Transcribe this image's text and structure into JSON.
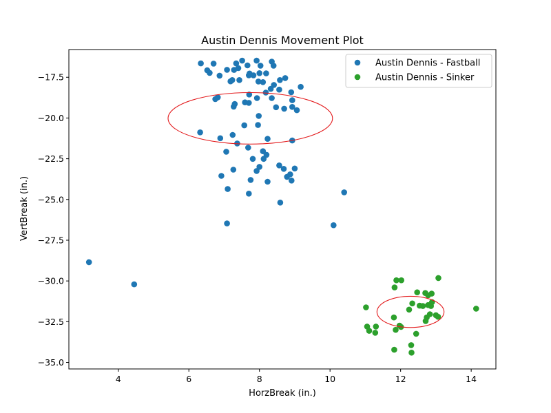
{
  "chart_data": {
    "type": "scatter",
    "title": "Austin Dennis Movement Plot",
    "xlabel": "HorzBreak (in.)",
    "ylabel": "VertBreak (in.)",
    "xlim": [
      2.6,
      14.7
    ],
    "ylim": [
      -35.4,
      -15.8
    ],
    "xticks": [
      4,
      6,
      8,
      10,
      12,
      14
    ],
    "yticks": [
      -17.5,
      -20.0,
      -22.5,
      -25.0,
      -27.5,
      -30.0,
      -32.5,
      -35.0
    ],
    "xtick_labels": [
      "4",
      "6",
      "8",
      "10",
      "12",
      "14"
    ],
    "ytick_labels": [
      "−17.5",
      "−20.0",
      "−22.5",
      "−25.0",
      "−27.5",
      "−30.0",
      "−32.5",
      "−35.0"
    ],
    "grid": false,
    "legend_position": "top-right",
    "series": [
      {
        "name": "Austin Dennis - Fastball",
        "color": "#1f77b4",
        "points": [
          [
            6.34,
            -16.65
          ],
          [
            6.52,
            -17.07
          ],
          [
            6.59,
            -17.23
          ],
          [
            6.7,
            -16.66
          ],
          [
            6.87,
            -17.4
          ],
          [
            7.08,
            -17.04
          ],
          [
            7.18,
            -17.75
          ],
          [
            7.23,
            -17.67
          ],
          [
            7.28,
            -17.05
          ],
          [
            7.34,
            -16.65
          ],
          [
            7.4,
            -16.94
          ],
          [
            7.43,
            -17.67
          ],
          [
            7.51,
            -16.48
          ],
          [
            7.66,
            -16.77
          ],
          [
            7.7,
            -17.38
          ],
          [
            7.72,
            -17.27
          ],
          [
            7.83,
            -17.38
          ],
          [
            7.92,
            -16.48
          ],
          [
            7.97,
            -17.76
          ],
          [
            8.0,
            -17.25
          ],
          [
            8.03,
            -16.79
          ],
          [
            8.1,
            -17.8
          ],
          [
            8.19,
            -17.26
          ],
          [
            8.35,
            -16.54
          ],
          [
            8.4,
            -16.79
          ],
          [
            8.58,
            -17.67
          ],
          [
            8.73,
            -17.55
          ],
          [
            6.75,
            -18.84
          ],
          [
            6.82,
            -18.73
          ],
          [
            7.27,
            -19.3
          ],
          [
            7.3,
            -19.14
          ],
          [
            7.59,
            -19.04
          ],
          [
            7.7,
            -19.07
          ],
          [
            7.71,
            -18.56
          ],
          [
            7.93,
            -18.78
          ],
          [
            8.18,
            -18.44
          ],
          [
            8.32,
            -18.21
          ],
          [
            8.35,
            -18.78
          ],
          [
            8.41,
            -17.97
          ],
          [
            8.47,
            -19.34
          ],
          [
            8.56,
            -18.26
          ],
          [
            8.7,
            -19.43
          ],
          [
            8.93,
            -19.32
          ],
          [
            8.93,
            -18.91
          ],
          [
            9.06,
            -19.52
          ],
          [
            9.17,
            -18.09
          ],
          [
            8.9,
            -18.42
          ],
          [
            7.98,
            -19.87
          ],
          [
            6.32,
            -20.88
          ],
          [
            6.89,
            -21.24
          ],
          [
            7.06,
            -22.07
          ],
          [
            7.24,
            -21.04
          ],
          [
            7.37,
            -21.56
          ],
          [
            7.57,
            -20.45
          ],
          [
            7.68,
            -21.82
          ],
          [
            7.96,
            -20.43
          ],
          [
            8.1,
            -22.04
          ],
          [
            8.23,
            -21.28
          ],
          [
            8.2,
            -22.26
          ],
          [
            8.93,
            -21.38
          ],
          [
            6.92,
            -23.55
          ],
          [
            7.26,
            -23.17
          ],
          [
            7.81,
            -22.51
          ],
          [
            7.92,
            -23.25
          ],
          [
            8.0,
            -23.0
          ],
          [
            8.12,
            -22.51
          ],
          [
            7.75,
            -23.8
          ],
          [
            8.23,
            -23.91
          ],
          [
            8.56,
            -22.91
          ],
          [
            8.69,
            -23.12
          ],
          [
            8.78,
            -23.61
          ],
          [
            8.91,
            -23.84
          ],
          [
            8.87,
            -23.46
          ],
          [
            9.0,
            -23.1
          ],
          [
            7.1,
            -24.36
          ],
          [
            7.7,
            -24.64
          ],
          [
            8.59,
            -25.19
          ],
          [
            10.4,
            -24.56
          ],
          [
            7.08,
            -26.47
          ],
          [
            10.1,
            -26.58
          ],
          [
            3.17,
            -28.85
          ],
          [
            4.45,
            -30.21
          ]
        ]
      },
      {
        "name": "Austin Dennis - Sinker",
        "color": "#2ca02c",
        "points": [
          [
            11.83,
            -30.4
          ],
          [
            11.88,
            -29.96
          ],
          [
            12.02,
            -29.96
          ],
          [
            12.47,
            -30.7
          ],
          [
            12.7,
            -30.74
          ],
          [
            12.78,
            -30.88
          ],
          [
            12.88,
            -30.78
          ],
          [
            13.07,
            -29.82
          ],
          [
            12.33,
            -31.38
          ],
          [
            12.54,
            -31.52
          ],
          [
            12.63,
            -31.54
          ],
          [
            12.78,
            -31.48
          ],
          [
            12.86,
            -31.54
          ],
          [
            12.89,
            -31.3
          ],
          [
            12.24,
            -31.76
          ],
          [
            11.02,
            -31.62
          ],
          [
            11.81,
            -32.24
          ],
          [
            12.74,
            -32.24
          ],
          [
            12.83,
            -32.04
          ],
          [
            13.0,
            -32.1
          ],
          [
            13.06,
            -32.2
          ],
          [
            12.71,
            -32.46
          ],
          [
            11.97,
            -32.74
          ],
          [
            12.01,
            -32.82
          ],
          [
            14.14,
            -31.7
          ],
          [
            11.05,
            -32.8
          ],
          [
            11.3,
            -32.8
          ],
          [
            11.11,
            -33.06
          ],
          [
            11.28,
            -33.18
          ],
          [
            11.86,
            -33.0
          ],
          [
            12.44,
            -33.24
          ],
          [
            12.3,
            -33.94
          ],
          [
            11.82,
            -34.22
          ],
          [
            12.31,
            -34.4
          ]
        ]
      }
    ],
    "ellipses": [
      {
        "cx": 7.74,
        "cy": -20.02,
        "rx": 2.33,
        "ry": 1.58,
        "color": "#e31a1c"
      },
      {
        "cx": 12.28,
        "cy": -31.9,
        "rx": 0.95,
        "ry": 0.96,
        "color": "#e31a1c"
      }
    ]
  }
}
